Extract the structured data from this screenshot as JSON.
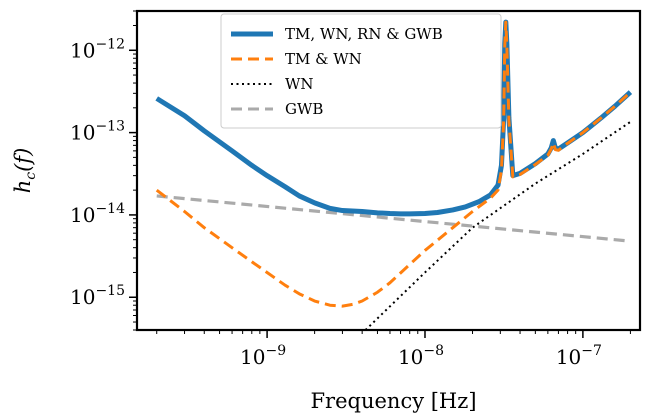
{
  "chart_data": {
    "type": "line",
    "xlabel": "Frequency [Hz]",
    "ylabel": "h_c(f)",
    "xscale": "log",
    "yscale": "log",
    "xlim": [
      1.5e-10,
      2.3e-07
    ],
    "ylim": [
      4e-16,
      3e-12
    ],
    "grid": false,
    "legend_placement": "top-center",
    "x_ticks": [
      {
        "value": 1e-09,
        "base": "10",
        "exp": "−9"
      },
      {
        "value": 1e-08,
        "base": "10",
        "exp": "−8"
      },
      {
        "value": 1e-07,
        "base": "10",
        "exp": "−7"
      }
    ],
    "y_ticks": [
      {
        "value": 1e-15,
        "base": "10",
        "exp": "−15"
      },
      {
        "value": 1e-14,
        "base": "10",
        "exp": "−14"
      },
      {
        "value": 1e-13,
        "base": "10",
        "exp": "−13"
      },
      {
        "value": 1e-12,
        "base": "10",
        "exp": "−12"
      }
    ],
    "series": [
      {
        "name": "TM, WN, RN & GWB",
        "color": "#1f77b4",
        "style": "solid",
        "x": [
          2e-10,
          3e-10,
          4e-10,
          6e-10,
          8e-10,
          1e-09,
          1.3e-09,
          1.6e-09,
          2e-09,
          2.5e-09,
          3e-09,
          4e-09,
          5e-09,
          6e-09,
          7e-09,
          8e-09,
          1e-08,
          1.2e-08,
          1.5e-08,
          1.8e-08,
          2.2e-08,
          2.6e-08,
          2.9e-08,
          3.05e-08,
          3.15e-08,
          3.2e-08,
          3.25e-08,
          3.3e-08,
          3.4e-08,
          3.6e-08,
          4e-08,
          5e-08,
          6e-08,
          6.3e-08,
          6.5e-08,
          6.7e-08,
          7e-08,
          8e-08,
          1e-07,
          1.3e-07,
          1.6e-07,
          2e-07
        ],
        "y": [
          2.6e-13,
          1.6e-13,
          1.05e-13,
          6e-14,
          4e-14,
          3e-14,
          2.2e-14,
          1.7e-14,
          1.4e-14,
          1.2e-14,
          1.13e-14,
          1.1e-14,
          1.06e-14,
          1.04e-14,
          1.03e-14,
          1.03e-14,
          1.04e-14,
          1.07e-14,
          1.15e-14,
          1.25e-14,
          1.45e-14,
          1.75e-14,
          2.3e-14,
          4e-14,
          1.5e-13,
          1.2e-12,
          2.2e-12,
          1.2e-12,
          1.5e-13,
          3e-14,
          3.2e-14,
          4.2e-14,
          5.5e-14,
          6.5e-14,
          8e-14,
          6.5e-14,
          6.3e-14,
          7.5e-14,
          1e-13,
          1.5e-13,
          2.1e-13,
          3.1e-13
        ]
      },
      {
        "name": "TM & WN",
        "color": "#ff7f0e",
        "style": "dashed",
        "x": [
          2e-10,
          3e-10,
          4e-10,
          6e-10,
          8e-10,
          1e-09,
          1.3e-09,
          1.6e-09,
          2e-09,
          2.5e-09,
          3e-09,
          3.5e-09,
          4e-09,
          5e-09,
          6e-09,
          8e-09,
          1e-08,
          1.5e-08,
          2e-08,
          2.6e-08,
          2.9e-08,
          3.05e-08,
          3.15e-08,
          3.2e-08,
          3.25e-08,
          3.3e-08,
          3.4e-08,
          3.6e-08,
          4e-08,
          5e-08,
          6e-08,
          6.3e-08,
          6.5e-08,
          6.7e-08,
          7e-08,
          8e-08,
          1e-07,
          1.3e-07,
          1.6e-07,
          2e-07
        ],
        "y": [
          2e-14,
          1.1e-14,
          7e-15,
          4e-15,
          2.7e-15,
          2e-15,
          1.4e-15,
          1.1e-15,
          9e-16,
          8e-16,
          7.8e-16,
          8.2e-16,
          9e-16,
          1.15e-15,
          1.5e-15,
          2.5e-15,
          3.7e-15,
          7e-15,
          1.1e-14,
          1.6e-14,
          2e-14,
          3.5e-14,
          1.4e-13,
          1.1e-12,
          2.2e-12,
          1.1e-12,
          1.4e-13,
          2.9e-14,
          3.1e-14,
          4.1e-14,
          5.3e-14,
          6.3e-14,
          7.5e-14,
          6.2e-14,
          6.1e-14,
          7.4e-14,
          1e-13,
          1.5e-13,
          2.1e-13,
          3.1e-13
        ]
      },
      {
        "name": "WN",
        "color": "#000000",
        "style": "dotted",
        "x": [
          4.2e-09,
          1e-08,
          2e-08,
          5e-08,
          1e-07,
          2e-07
        ],
        "y": [
          4e-16,
          2e-15,
          7e-15,
          2.4e-14,
          5.5e-14,
          1.35e-13
        ]
      },
      {
        "name": "GWB",
        "color": "#aaaaaa",
        "style": "dashed",
        "x": [
          2e-10,
          2e-07
        ],
        "y": [
          1.7e-14,
          4.8e-15
        ]
      }
    ]
  }
}
